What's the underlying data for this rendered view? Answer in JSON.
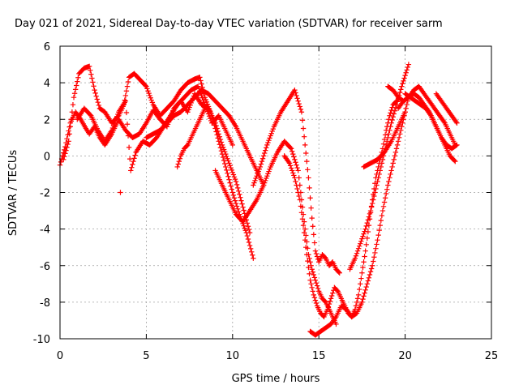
{
  "chart_data": {
    "type": "scatter",
    "title": "Day 021 of 2021, Sidereal Day-to-day VTEC variation (SDTVAR) for receiver sarm",
    "xlabel": "GPS time / hours",
    "ylabel": "SDTVAR / TECUs",
    "xlim": [
      0,
      25
    ],
    "ylim": [
      -10,
      6
    ],
    "xticks": [
      "0",
      "5",
      "10",
      "15",
      "20",
      "25"
    ],
    "yticks": [
      "-10",
      "-8",
      "-6",
      "-4",
      "-2",
      "0",
      "2",
      "4",
      "6"
    ],
    "grid": true,
    "marker": "plus",
    "marker_color": "#ff0000",
    "tracks": [
      {
        "x": [
          0.0,
          0.3,
          0.6,
          0.9,
          1.2,
          1.5,
          1.7,
          2.0,
          2.3,
          2.6,
          3.0,
          3.4,
          3.8,
          4.2,
          4.6,
          5.0,
          5.4,
          5.8,
          6.2,
          6.6,
          7.0,
          7.4,
          7.8,
          8.2,
          8.6,
          9.0,
          9.4,
          9.8,
          10.2,
          10.6,
          11.0
        ],
        "y": [
          -0.5,
          0.5,
          1.8,
          2.4,
          2.0,
          1.5,
          1.2,
          1.6,
          1.0,
          0.6,
          1.2,
          2.0,
          1.4,
          1.0,
          1.2,
          1.8,
          2.5,
          2.0,
          1.6,
          2.6,
          3.0,
          2.4,
          3.4,
          2.8,
          2.6,
          1.8,
          0.6,
          -0.4,
          -1.4,
          -2.8,
          -4.2
        ]
      },
      {
        "x": [
          0.2,
          0.5,
          0.8,
          1.1,
          1.4,
          1.7,
          2.0,
          2.3,
          2.6,
          3.0,
          3.4,
          3.7,
          4.0,
          4.3,
          4.6,
          5.0,
          5.4,
          5.8,
          6.2,
          6.6,
          7.0,
          7.4,
          7.8,
          8.1,
          8.4,
          8.8,
          9.2,
          9.6,
          10.0,
          10.4,
          10.8,
          11.2
        ],
        "y": [
          -0.2,
          0.8,
          3.2,
          4.5,
          4.8,
          4.9,
          3.6,
          2.6,
          2.4,
          1.8,
          2.2,
          2.8,
          4.3,
          4.5,
          4.2,
          3.8,
          2.8,
          2.2,
          2.6,
          3.0,
          3.6,
          4.0,
          4.2,
          4.3,
          3.2,
          2.2,
          0.8,
          -0.6,
          -2.0,
          -3.2,
          -4.2,
          -5.6
        ]
      },
      {
        "x": [
          1.0,
          1.4,
          1.8,
          2.2,
          2.6,
          3.0,
          3.4,
          3.8,
          4.1,
          4.4,
          4.8,
          5.2,
          5.6,
          6.0,
          6.4,
          6.8,
          7.2,
          7.6,
          8.0,
          8.4,
          8.8,
          9.2,
          9.6,
          10.0
        ],
        "y": [
          2.0,
          2.6,
          2.2,
          1.4,
          0.8,
          1.4,
          2.4,
          3.0,
          -0.8,
          0.2,
          0.8,
          0.6,
          1.0,
          1.6,
          2.2,
          2.8,
          3.2,
          3.6,
          3.8,
          2.8,
          1.8,
          2.2,
          1.4,
          0.6
        ]
      },
      {
        "x": [
          5.0,
          5.4,
          5.8,
          6.2,
          6.6,
          7.0,
          7.4,
          7.8,
          8.2,
          8.6,
          9.0,
          9.4,
          9.8,
          10.2,
          10.6,
          11.0,
          11.4,
          11.8
        ],
        "y": [
          1.0,
          1.2,
          1.4,
          1.8,
          2.2,
          2.4,
          2.8,
          3.2,
          3.6,
          3.4,
          3.0,
          2.6,
          2.2,
          1.6,
          0.8,
          0.0,
          -0.8,
          -1.6
        ]
      },
      {
        "x": [
          6.8,
          7.0,
          7.2,
          7.4,
          7.6,
          7.8,
          8.0,
          8.2,
          8.4
        ],
        "y": [
          -0.6,
          0.0,
          0.4,
          0.6,
          1.0,
          1.4,
          1.8,
          2.2,
          2.6
        ]
      },
      {
        "x": [
          9.0,
          9.4,
          9.8,
          10.2,
          10.6,
          11.0,
          11.4,
          11.8,
          12.2,
          12.6,
          13.0,
          13.4,
          13.8,
          14.0,
          14.2,
          14.4,
          14.6,
          14.8,
          15.0,
          15.2,
          15.4,
          15.6,
          15.8,
          16.0
        ],
        "y": [
          -0.8,
          -1.6,
          -2.4,
          -3.2,
          -3.6,
          -3.0,
          -2.4,
          -1.6,
          -0.6,
          0.2,
          0.8,
          0.4,
          -0.8,
          -2.4,
          -4.0,
          -5.4,
          -6.2,
          -6.8,
          -7.4,
          -7.8,
          -8.0,
          -8.4,
          -8.8,
          -9.2
        ]
      },
      {
        "x": [
          11.2,
          11.6,
          12.0,
          12.4,
          12.8,
          13.2,
          13.6,
          14.0,
          14.2,
          14.4,
          14.6,
          14.8,
          15.0,
          15.2,
          15.4,
          15.6,
          15.8,
          16.0,
          16.2
        ],
        "y": [
          -1.6,
          -0.6,
          0.6,
          1.6,
          2.4,
          3.0,
          3.6,
          2.4,
          0.6,
          -1.2,
          -3.4,
          -5.2,
          -5.8,
          -5.4,
          -5.6,
          -6.0,
          -5.8,
          -6.2,
          -6.4
        ]
      },
      {
        "x": [
          13.0,
          13.3,
          13.6,
          13.9,
          14.1,
          14.3,
          14.5,
          14.7,
          14.9,
          15.1,
          15.3,
          15.5,
          15.7,
          15.9,
          16.1,
          16.3,
          16.5,
          16.7,
          16.9,
          17.1,
          17.3,
          17.5,
          17.7,
          17.9,
          18.1,
          18.3,
          18.5,
          18.7,
          18.9,
          19.1,
          19.3,
          19.5
        ],
        "y": [
          0.0,
          -0.4,
          -1.2,
          -2.4,
          -3.8,
          -5.4,
          -6.8,
          -7.6,
          -8.2,
          -8.6,
          -8.8,
          -8.4,
          -7.8,
          -7.2,
          -7.4,
          -7.8,
          -8.2,
          -8.6,
          -8.8,
          -8.4,
          -7.6,
          -6.4,
          -5.2,
          -3.8,
          -2.4,
          -1.2,
          -0.4,
          0.4,
          1.4,
          2.2,
          2.8,
          3.0
        ]
      },
      {
        "x": [
          14.5,
          14.8,
          15.1,
          15.4,
          15.7,
          16.0,
          16.3,
          16.6,
          16.9,
          17.2,
          17.5,
          17.8,
          18.1,
          18.4,
          18.7,
          19.0,
          19.3,
          19.6,
          19.9,
          20.2
        ],
        "y": [
          -9.6,
          -9.8,
          -9.6,
          -9.4,
          -9.2,
          -8.8,
          -8.2,
          -8.4,
          -8.8,
          -8.6,
          -8.0,
          -7.0,
          -6.0,
          -4.6,
          -3.0,
          -1.6,
          -0.4,
          0.8,
          2.0,
          3.2
        ]
      },
      {
        "x": [
          16.8,
          17.1,
          17.4,
          17.7,
          18.0,
          18.3,
          18.6,
          18.9,
          19.2,
          19.5,
          19.8,
          20.0,
          20.2
        ],
        "y": [
          -6.2,
          -5.6,
          -4.8,
          -4.0,
          -3.0,
          -1.8,
          -0.6,
          0.6,
          1.8,
          2.8,
          3.8,
          4.4,
          5.0
        ]
      },
      {
        "x": [
          17.6,
          18.0,
          18.4,
          18.8,
          19.2,
          19.6,
          20.0
        ],
        "y": [
          -0.6,
          -0.4,
          -0.2,
          0.2,
          0.8,
          1.6,
          2.4
        ]
      },
      {
        "x": [
          19.0,
          19.3,
          19.6,
          19.9,
          20.2,
          20.5,
          20.8,
          21.1,
          21.4,
          21.7,
          22.0,
          22.3,
          22.6,
          22.9
        ],
        "y": [
          3.8,
          3.6,
          3.2,
          3.0,
          3.2,
          3.6,
          3.8,
          3.4,
          3.0,
          2.6,
          2.2,
          1.8,
          1.2,
          0.6
        ]
      },
      {
        "x": [
          19.6,
          19.9,
          20.2,
          20.5,
          20.8,
          21.1,
          21.4,
          21.7,
          22.0,
          22.3,
          22.6,
          22.9
        ],
        "y": [
          2.6,
          3.0,
          3.2,
          3.4,
          3.2,
          2.8,
          2.4,
          1.8,
          1.2,
          0.6,
          0.0,
          -0.3
        ]
      },
      {
        "x": [
          20.0,
          20.3,
          20.6,
          20.9,
          21.2,
          21.5,
          21.8,
          22.1,
          22.4,
          22.7,
          23.0
        ],
        "y": [
          3.4,
          3.2,
          3.0,
          2.8,
          2.6,
          2.2,
          1.6,
          1.0,
          0.6,
          0.4,
          0.6
        ]
      },
      {
        "x": [
          21.8,
          22.1,
          22.4,
          22.7,
          23.0
        ],
        "y": [
          3.4,
          3.0,
          2.6,
          2.2,
          1.8
        ]
      },
      {
        "x": [
          3.5
        ],
        "y": [
          -2.0
        ]
      }
    ]
  }
}
